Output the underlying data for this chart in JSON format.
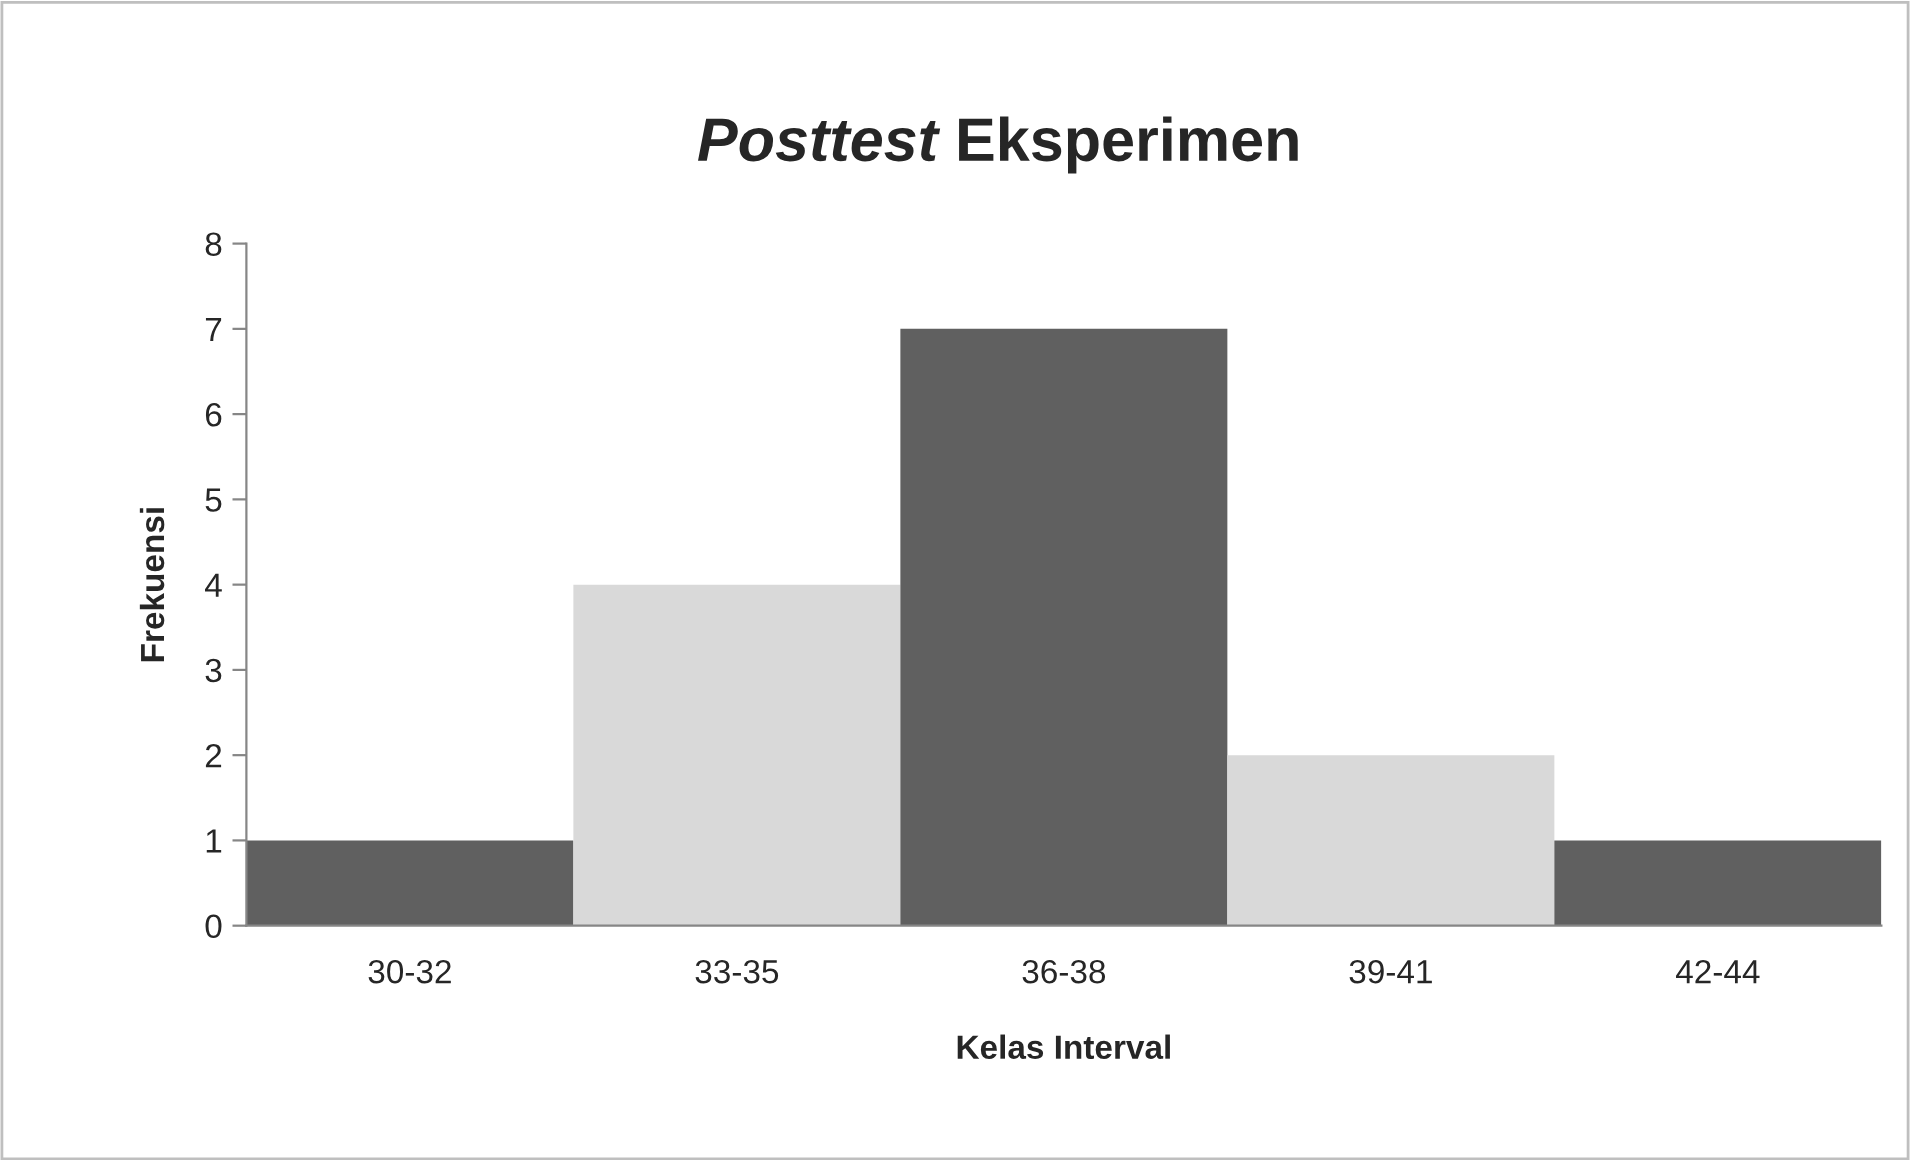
{
  "chart_data": {
    "type": "bar",
    "title": "Posttest Eksperimen",
    "xlabel": "Kelas Interval",
    "ylabel": "Frekuensi",
    "categories": [
      "30-32",
      "33-35",
      "36-38",
      "39-41",
      "42-44"
    ],
    "values": [
      1,
      4,
      7,
      2,
      1
    ],
    "colors": [
      "#606060",
      "#d9d9d9",
      "#606060",
      "#d9d9d9",
      "#606060"
    ],
    "ylim": [
      0,
      8
    ],
    "yticks": [
      0,
      1,
      2,
      3,
      4,
      5,
      6,
      7,
      8
    ],
    "grid": false,
    "legend": false
  }
}
